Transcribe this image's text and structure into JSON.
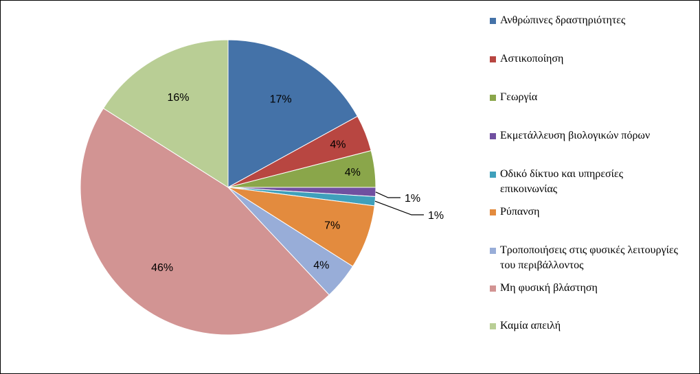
{
  "chart_data": {
    "type": "pie",
    "title": "",
    "start_angle_deg": 0,
    "direction": "clockwise",
    "slices": [
      {
        "name": "Ανθρώπινες δραστηριότητες",
        "value": 17,
        "label": "17%",
        "color": "#4472A8"
      },
      {
        "name": "Αστικοποίηση",
        "value": 4,
        "label": "4%",
        "color": "#B84641"
      },
      {
        "name": "Γεωργία",
        "value": 4,
        "label": "4%",
        "color": "#8AA64A"
      },
      {
        "name": "Εκμετάλλευση βιολογικών πόρων",
        "value": 1,
        "label": "1%",
        "color": "#7050A0"
      },
      {
        "name": "Οδικό δίκτυο και υπηρεσίες επικοινωνίας",
        "value": 1,
        "label": "1%",
        "color": "#3FA0BB"
      },
      {
        "name": "Ρύπανση",
        "value": 7,
        "label": "7%",
        "color": "#E38B3E"
      },
      {
        "name": "Τροποποιήσεις στις φυσικές λειτουργίες του περιβάλλοντος",
        "value": 4,
        "label": "4%",
        "color": "#98ADD8"
      },
      {
        "name": "Μη φυσική βλάστηση",
        "value": 46,
        "label": "46%",
        "color": "#D29493"
      },
      {
        "name": "Καμία απειλή",
        "value": 16,
        "label": "16%",
        "color": "#B9CE95"
      }
    ],
    "legend_position": "right"
  }
}
